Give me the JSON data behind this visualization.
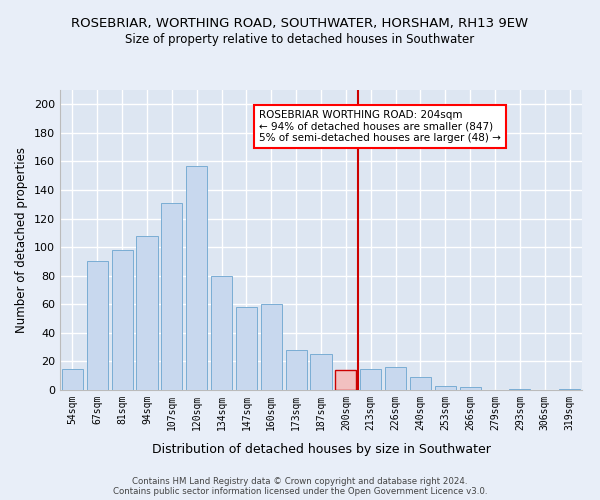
{
  "title": "ROSEBRIAR, WORTHING ROAD, SOUTHWATER, HORSHAM, RH13 9EW",
  "subtitle": "Size of property relative to detached houses in Southwater",
  "xlabel": "Distribution of detached houses by size in Southwater",
  "ylabel": "Number of detached properties",
  "bar_labels": [
    "54sqm",
    "67sqm",
    "81sqm",
    "94sqm",
    "107sqm",
    "120sqm",
    "134sqm",
    "147sqm",
    "160sqm",
    "173sqm",
    "187sqm",
    "200sqm",
    "213sqm",
    "226sqm",
    "240sqm",
    "253sqm",
    "266sqm",
    "279sqm",
    "293sqm",
    "306sqm",
    "319sqm"
  ],
  "bar_values": [
    15,
    90,
    98,
    108,
    131,
    157,
    80,
    58,
    60,
    28,
    25,
    14,
    15,
    16,
    9,
    3,
    2,
    0,
    1,
    0,
    1
  ],
  "bar_color_normal": "#c8d8ee",
  "bar_edge_color": "#7aadd4",
  "bar_highlight_color": "#f2c0c0",
  "bar_highlight_edge": "#cc0000",
  "ref_line_color": "#cc0000",
  "annotation_line1": "ROSEBRIAR WORTHING ROAD: 204sqm",
  "annotation_line2": "← 94% of detached houses are smaller (847)",
  "annotation_line3": "5% of semi-detached houses are larger (48) →",
  "ylim": [
    0,
    210
  ],
  "yticks": [
    0,
    20,
    40,
    60,
    80,
    100,
    120,
    140,
    160,
    180,
    200
  ],
  "background_color": "#dde6f2",
  "fig_facecolor": "#e8eef8",
  "footer_line1": "Contains HM Land Registry data © Crown copyright and database right 2024.",
  "footer_line2": "Contains public sector information licensed under the Open Government Licence v3.0."
}
